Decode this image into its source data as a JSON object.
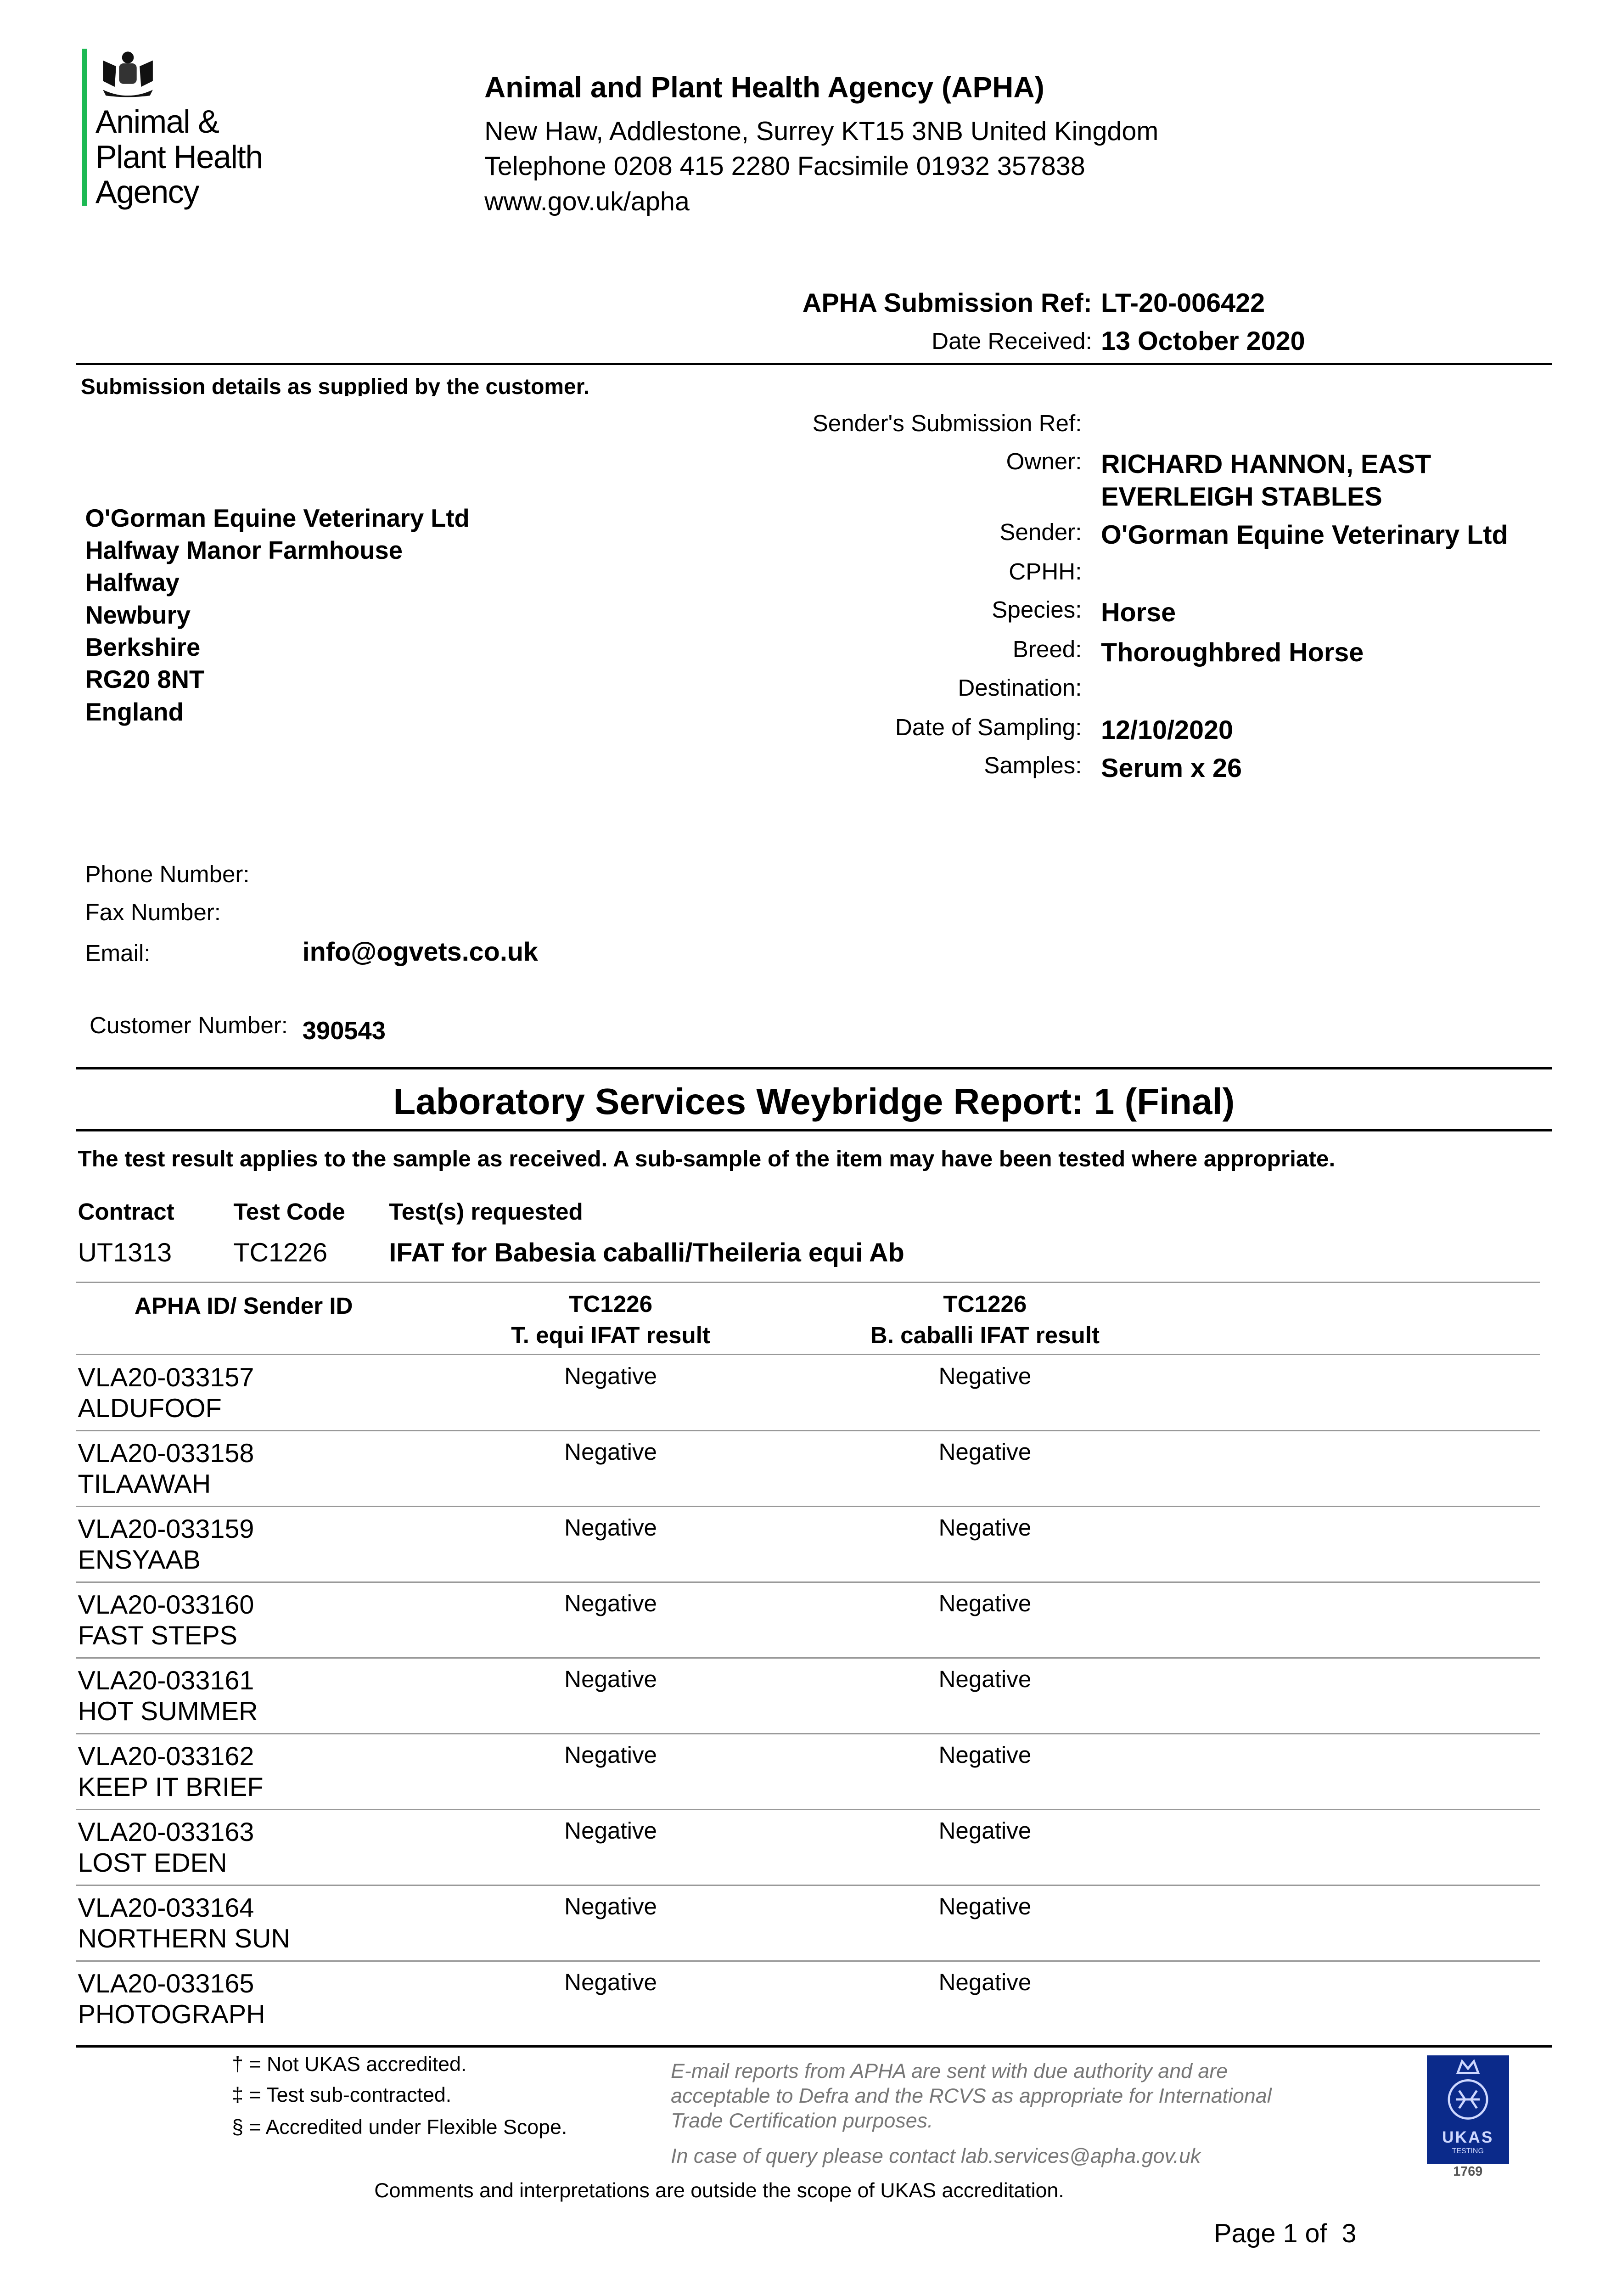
{
  "logo": {
    "text_lines": [
      "Animal &",
      "Plant Health",
      "Agency"
    ],
    "accent_color": "#1db954"
  },
  "agency": {
    "name": "Animal and Plant Health Agency (APHA)",
    "address": "New Haw, Addlestone, Surrey KT15 3NB United Kingdom",
    "phone_fax": "Telephone 0208 415 2280 Facsimile 01932 357838",
    "web": "www.gov.uk/apha"
  },
  "submission": {
    "ref_label": "APHA Submission Ref:",
    "ref": "LT-20-006422",
    "date_label": "Date Received:",
    "date": "13 October 2020",
    "details_heading": "Submission details as supplied by the customer."
  },
  "address_lines": [
    "O'Gorman Equine Veterinary Ltd",
    "Halfway Manor Farmhouse",
    "Halfway",
    "Newbury",
    "Berkshire",
    "RG20 8NT",
    "England"
  ],
  "details": {
    "senders_ref_label": "Sender's Submission Ref:",
    "owner_label": "Owner:",
    "owner_lines": [
      "RICHARD HANNON, EAST",
      "EVERLEIGH STABLES"
    ],
    "sender_label": "Sender:",
    "sender": "O'Gorman Equine Veterinary Ltd",
    "cphh_label": "CPHH:",
    "species_label": "Species:",
    "species": "Horse",
    "breed_label": "Breed:",
    "breed": "Thoroughbred Horse",
    "destination_label": "Destination:",
    "sampling_label": "Date of Sampling:",
    "sampling": "12/10/2020",
    "samples_label": "Samples:",
    "samples": "Serum x 26"
  },
  "contact": {
    "phone_label": "Phone Number:",
    "fax_label": "Fax Number:",
    "email_label": "Email:",
    "email": "info@ogvets.co.uk",
    "customer_label": "Customer Number:",
    "customer": "390543"
  },
  "report": {
    "title": "Laboratory Services Weybridge Report: 1 (Final)",
    "disclaimer": "The test result applies to the sample as received. A sub-sample of the item may have been tested where appropriate.",
    "contract_header": "Contract",
    "testcode_header": "Test Code",
    "tests_header": "Test(s) requested",
    "contract": "UT1313",
    "testcode": "TC1226",
    "tests": "IFAT for Babesia caballi/Theileria equi Ab"
  },
  "table": {
    "headers": {
      "id": "APHA ID/ Sender ID",
      "col1_code": "TC1226",
      "col1": "T. equi IFAT result",
      "col2_code": "TC1226",
      "col2": "B. caballi IFAT result"
    },
    "rows": [
      {
        "id": "VLA20-033157",
        "name": "ALDUFOOF",
        "t_equi": "Negative",
        "b_caballi": "Negative"
      },
      {
        "id": "VLA20-033158",
        "name": "TILAAWAH",
        "t_equi": "Negative",
        "b_caballi": "Negative"
      },
      {
        "id": "VLA20-033159",
        "name": "ENSYAAB",
        "t_equi": "Negative",
        "b_caballi": "Negative"
      },
      {
        "id": "VLA20-033160",
        "name": "FAST STEPS",
        "t_equi": "Negative",
        "b_caballi": "Negative"
      },
      {
        "id": "VLA20-033161",
        "name": "HOT SUMMER",
        "t_equi": "Negative",
        "b_caballi": "Negative"
      },
      {
        "id": "VLA20-033162",
        "name": "KEEP IT BRIEF",
        "t_equi": "Negative",
        "b_caballi": "Negative"
      },
      {
        "id": "VLA20-033163",
        "name": "LOST EDEN",
        "t_equi": "Negative",
        "b_caballi": "Negative"
      },
      {
        "id": "VLA20-033164",
        "name": "NORTHERN SUN",
        "t_equi": "Negative",
        "b_caballi": "Negative"
      },
      {
        "id": "VLA20-033165",
        "name": "PHOTOGRAPH",
        "t_equi": "Negative",
        "b_caballi": "Negative"
      }
    ]
  },
  "footer": {
    "legend": [
      "† = Not UKAS accredited.",
      "‡ = Test sub-contracted.",
      "§ = Accredited under Flexible Scope."
    ],
    "email_note": [
      "E-mail reports from APHA are sent with due authority and are",
      "acceptable to Defra and the RCVS as appropriate for International",
      "Trade Certification purposes."
    ],
    "query_note": "In case of query please contact lab.services@apha.gov.uk",
    "ukas": {
      "text": "UKAS",
      "sub": "TESTING",
      "number": "1769",
      "color": "#0b2a8a"
    },
    "comments": "Comments and interpretations are outside the scope of UKAS accreditation.",
    "page_label": "Page 1 of  3"
  }
}
